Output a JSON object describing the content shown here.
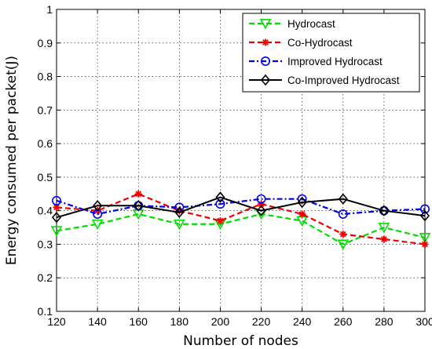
{
  "chart_data": {
    "type": "line",
    "xlabel": "Number of nodes",
    "ylabel": "Energy consumed per packet(J)",
    "xlim": [
      120,
      300
    ],
    "ylim": [
      0.1,
      1
    ],
    "xticks": [
      120,
      140,
      160,
      180,
      200,
      220,
      240,
      260,
      280,
      300
    ],
    "yticks": [
      0.1,
      0.2,
      0.3,
      0.4,
      0.5,
      0.6,
      0.7,
      0.8,
      0.9,
      1
    ],
    "ytick_labels": [
      "0.1",
      "0.2",
      "0.3",
      "0.4",
      "0.5",
      "0.6",
      "0.7",
      "0.8",
      "0.9",
      "1"
    ],
    "grid": true,
    "legend_position": "top-right",
    "x": [
      120,
      140,
      160,
      180,
      200,
      220,
      240,
      260,
      280,
      300
    ],
    "series": [
      {
        "name": "Hydrocast",
        "values": [
          0.34,
          0.36,
          0.39,
          0.36,
          0.36,
          0.39,
          0.37,
          0.3,
          0.35,
          0.32
        ],
        "color": "#00dd00",
        "line_style": "dashed",
        "marker": "triangle-down"
      },
      {
        "name": "Co-Hydrocast",
        "values": [
          0.41,
          0.4,
          0.45,
          0.4,
          0.37,
          0.42,
          0.39,
          0.33,
          0.315,
          0.3
        ],
        "color": "#ee0000",
        "line_style": "dashed",
        "marker": "asterisk"
      },
      {
        "name": "Improved Hydrocast",
        "values": [
          0.43,
          0.39,
          0.415,
          0.41,
          0.42,
          0.435,
          0.435,
          0.39,
          0.4,
          0.405
        ],
        "color": "#0000ee",
        "line_style": "dashdot",
        "marker": "circle"
      },
      {
        "name": "Co-Improved Hydrocast",
        "values": [
          0.38,
          0.415,
          0.415,
          0.395,
          0.44,
          0.4,
          0.425,
          0.435,
          0.4,
          0.385
        ],
        "color": "#000000",
        "line_style": "solid",
        "marker": "diamond"
      }
    ]
  }
}
